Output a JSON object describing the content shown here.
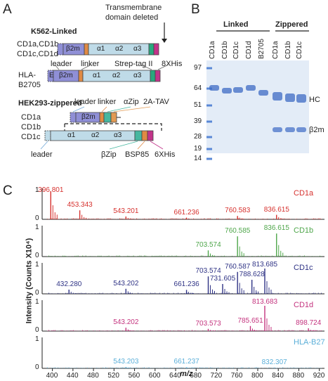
{
  "panelA": {
    "letter": "A",
    "linked_title": "K562-Linked",
    "tm_label_1": "Transmembrane",
    "tm_label_2": "domain deleted",
    "cd1_label_1": "CD1a,CD1b",
    "cd1_label_2": "CD1c,CD1d",
    "hla_label_1": "HLA-",
    "hla_label_2": "B2705",
    "leader_label": "leader",
    "linker_label": "linker",
    "strep_label": "Strep-tag II",
    "his8_label": "8XHis",
    "dom_b2m": "β2m",
    "dom_a1": "α1",
    "dom_a2": "α2",
    "dom_a3": "α3",
    "dom_E": "E",
    "zippered_title": "HEK293-zippered",
    "z_leader_label": "leader",
    "z_linker_label": "linker",
    "z_azip_label": "αZip",
    "z_2a_label": "2A-TAV",
    "z_cd1a": "CD1a",
    "z_cd1b": "CD1b",
    "z_cd1c": "CD1c",
    "z_leader_bottom": "leader",
    "z_bzip_label": "βZip",
    "z_bsp_label": "BSP85",
    "z_his6_label": "6XHis",
    "colors": {
      "b2m": "#8f8fd6",
      "domain": "#bfdbe8",
      "linker": "#e08a44",
      "strep": "#2aa87e",
      "his": "#c2338a",
      "azip": "#46b7a0",
      "ta": "#e29a54"
    }
  },
  "panelB": {
    "letter": "B",
    "group_linked": "Linked",
    "group_zippered": "Zippered",
    "lanes": [
      "CD1a",
      "CD1b",
      "CD1c",
      "CD1d",
      "B2705",
      "CD1a",
      "CD1b",
      "CD1c"
    ],
    "markers": [
      "97",
      "64",
      "51",
      "39",
      "28",
      "19",
      "14"
    ],
    "label_hc": "HC",
    "label_b2m": "β2m",
    "colors": {
      "gel": "#e3ecf7",
      "band": "#3d6bc4",
      "marker": "#5a88d6"
    }
  },
  "panelC": {
    "letter": "C",
    "ylabel": "Intensity (Counts X10⁴)",
    "xlabel": "m/z",
    "x_ticks": [
      "400",
      "440",
      "480",
      "520",
      "560",
      "600",
      "640",
      "680",
      "720",
      "760",
      "800",
      "840",
      "880",
      "920"
    ],
    "chart_data": [
      {
        "type": "line",
        "name": "CD1a",
        "color": "#d6312e",
        "ylim": [
          0,
          1
        ],
        "yticks": [
          "1",
          "0"
        ],
        "peaks": [
          {
            "x": 396.801,
            "y": 1.0
          },
          {
            "x": 453.343,
            "y": 0.32
          },
          {
            "x": 543.201,
            "y": 0.1
          },
          {
            "x": 661.236,
            "y": 0.06
          },
          {
            "x": 760.583,
            "y": 0.12
          },
          {
            "x": 836.615,
            "y": 0.16
          }
        ],
        "labels": [
          "396.801",
          "453.343",
          "543.201",
          "661.236",
          "760.583",
          "836.615"
        ],
        "trace_label": "CD1a"
      },
      {
        "type": "line",
        "name": "CD1b",
        "color": "#4ea64a",
        "ylim": [
          0,
          1
        ],
        "yticks": [
          "1",
          "0"
        ],
        "peaks": [
          {
            "x": 703.574,
            "y": 0.22
          },
          {
            "x": 760.585,
            "y": 0.72
          },
          {
            "x": 836.615,
            "y": 0.82
          }
        ],
        "labels": [
          "703.574",
          "760.585",
          "836.615"
        ],
        "trace_label": "CD1b"
      },
      {
        "type": "line",
        "name": "CD1c",
        "color": "#2f3385",
        "ylim": [
          0,
          1
        ],
        "yticks": [
          "1",
          "0"
        ],
        "peaks": [
          {
            "x": 432.28,
            "y": 0.15
          },
          {
            "x": 543.202,
            "y": 0.18
          },
          {
            "x": 661.236,
            "y": 0.14
          },
          {
            "x": 703.574,
            "y": 0.62
          },
          {
            "x": 731.605,
            "y": 0.35
          },
          {
            "x": 760.587,
            "y": 0.78
          },
          {
            "x": 788.628,
            "y": 0.5
          },
          {
            "x": 813.685,
            "y": 0.9
          }
        ],
        "labels": [
          "432.280",
          "543.202",
          "661.236",
          "703.574",
          "731.605",
          "760.587",
          "788.628",
          "813.685"
        ],
        "trace_label": "CD1c"
      },
      {
        "type": "line",
        "name": "CD1d",
        "color": "#c4337e",
        "ylim": [
          0,
          1
        ],
        "yticks": [
          "1",
          "0"
        ],
        "peaks": [
          {
            "x": 543.202,
            "y": 0.12
          },
          {
            "x": 703.573,
            "y": 0.08
          },
          {
            "x": 785.651,
            "y": 0.18
          },
          {
            "x": 813.683,
            "y": 0.9
          },
          {
            "x": 898.724,
            "y": 0.1
          }
        ],
        "labels": [
          "543.202",
          "703.573",
          "785.651",
          "813.683",
          "898.724"
        ],
        "trace_label": "CD1d"
      },
      {
        "type": "line",
        "name": "HLA-B27",
        "color": "#5aaed8",
        "ylim": [
          0,
          1
        ],
        "yticks": [
          "1",
          "0"
        ],
        "peaks": [
          {
            "x": 543.203,
            "y": 0.05
          },
          {
            "x": 661.237,
            "y": 0.04
          },
          {
            "x": 832.307,
            "y": 0.03
          }
        ],
        "labels": [
          "543.203",
          "661.237",
          "832.307"
        ],
        "trace_label": "HLA-B27"
      }
    ]
  }
}
